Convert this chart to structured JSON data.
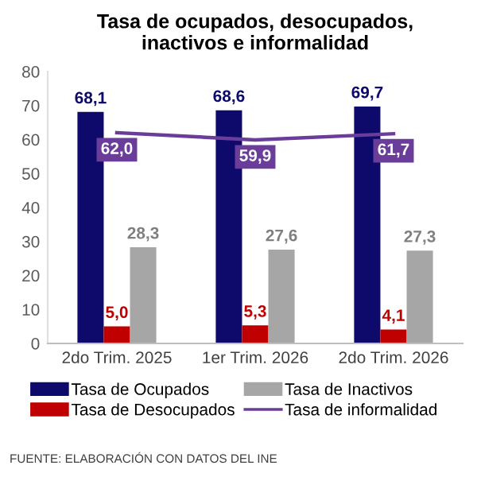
{
  "chart_data": {
    "type": "bar",
    "title": "Tasa de ocupados, desocupados,\ninactivos e informalidad",
    "categories": [
      "2do Trim. 2025",
      "1er Trim. 2026",
      "2do Trim. 2026"
    ],
    "series": [
      {
        "name": "Tasa de Ocupados",
        "color": "#0d0a6b",
        "values": [
          68.1,
          68.6,
          69.7
        ],
        "value_labels": [
          "68,1",
          "68,6",
          "69,7"
        ]
      },
      {
        "name": "Tasa de Desocupados",
        "color": "#c00000",
        "values": [
          5.0,
          5.3,
          4.1
        ],
        "value_labels": [
          "5,0",
          "5,3",
          "4,1"
        ]
      },
      {
        "name": "Tasa de Inactivos",
        "color": "#a6a6a6",
        "values": [
          28.3,
          27.6,
          27.3
        ],
        "value_labels": [
          "28,3",
          "27,6",
          "27,3"
        ]
      },
      {
        "name": "Tasa de informalidad",
        "type": "line",
        "color": "#6a3d9a",
        "values": [
          62.0,
          59.9,
          61.7
        ],
        "value_labels": [
          "62,0",
          "59,9",
          "61,7"
        ]
      }
    ],
    "ylim": [
      0,
      80
    ],
    "yticks": [
      0,
      10,
      20,
      30,
      40,
      50,
      60,
      70,
      80
    ],
    "grid": false,
    "legend": "bottom",
    "marker": "none",
    "annotations": [
      "FUENTE: ELABORACIÓN CON DATOS DEL INE"
    ]
  }
}
